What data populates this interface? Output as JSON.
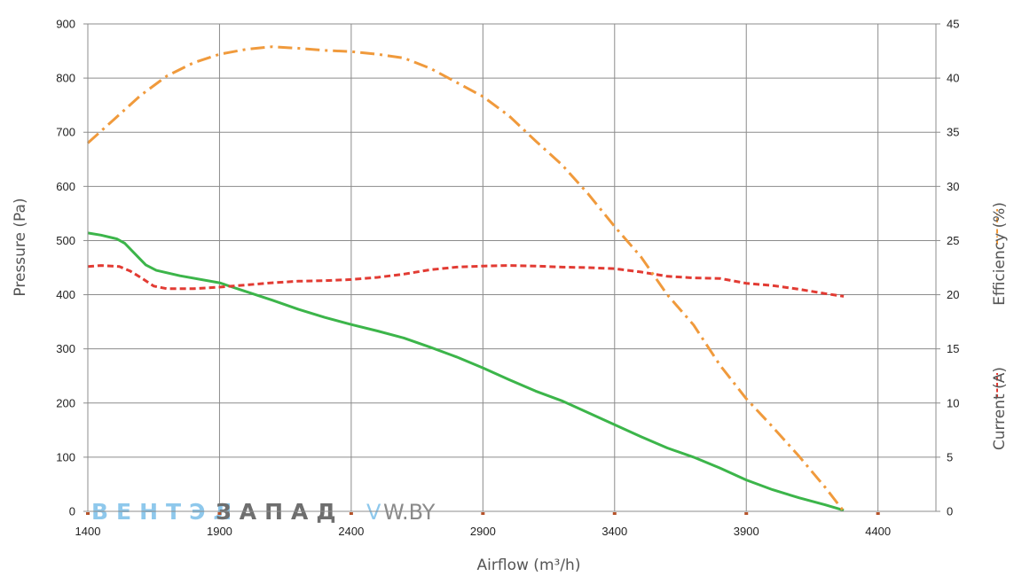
{
  "chart_data": {
    "type": "line",
    "xlabel": "Airflow (m³/h)",
    "ylabel": "Pressure (Pa)",
    "y2label_efficiency": "Efficiency (%)",
    "y2label_current": "Current (A)",
    "x_ticks": [
      "1400",
      "1900",
      "2400",
      "2900",
      "3400",
      "3900",
      "4400"
    ],
    "y_ticks": [
      "0",
      "100",
      "200",
      "300",
      "400",
      "500",
      "600",
      "700",
      "800",
      "900"
    ],
    "y2_ticks": [
      "0",
      "5",
      "10",
      "15",
      "20",
      "25",
      "30",
      "35",
      "40",
      "45"
    ],
    "xlim": [
      1400,
      4620
    ],
    "ylim": [
      0,
      900
    ],
    "y2lim": [
      0,
      45
    ],
    "grid": true,
    "series": [
      {
        "key": "pressure",
        "axis": "left",
        "color": "#3cb54a",
        "style": "solid",
        "points": [
          [
            1400,
            514
          ],
          [
            1450,
            510
          ],
          [
            1510,
            503
          ],
          [
            1540,
            495
          ],
          [
            1580,
            475
          ],
          [
            1620,
            455
          ],
          [
            1660,
            445
          ],
          [
            1750,
            435
          ],
          [
            1900,
            422
          ],
          [
            2000,
            406
          ],
          [
            2100,
            390
          ],
          [
            2200,
            373
          ],
          [
            2300,
            358
          ],
          [
            2400,
            345
          ],
          [
            2500,
            333
          ],
          [
            2600,
            320
          ],
          [
            2700,
            303
          ],
          [
            2800,
            285
          ],
          [
            2900,
            265
          ],
          [
            3000,
            243
          ],
          [
            3100,
            222
          ],
          [
            3200,
            204
          ],
          [
            3300,
            182
          ],
          [
            3400,
            160
          ],
          [
            3500,
            138
          ],
          [
            3600,
            117
          ],
          [
            3700,
            100
          ],
          [
            3800,
            80
          ],
          [
            3900,
            58
          ],
          [
            4000,
            40
          ],
          [
            4100,
            25
          ],
          [
            4200,
            12
          ],
          [
            4270,
            2
          ]
        ]
      },
      {
        "key": "current",
        "axis": "right",
        "color": "#e23b33",
        "style": "dashed",
        "points": [
          [
            1400,
            22.6
          ],
          [
            1450,
            22.7
          ],
          [
            1520,
            22.6
          ],
          [
            1560,
            22.2
          ],
          [
            1600,
            21.6
          ],
          [
            1650,
            20.8
          ],
          [
            1700,
            20.55
          ],
          [
            1800,
            20.55
          ],
          [
            1900,
            20.7
          ],
          [
            2000,
            20.9
          ],
          [
            2100,
            21.1
          ],
          [
            2200,
            21.25
          ],
          [
            2300,
            21.3
          ],
          [
            2400,
            21.4
          ],
          [
            2500,
            21.6
          ],
          [
            2600,
            21.9
          ],
          [
            2700,
            22.3
          ],
          [
            2800,
            22.55
          ],
          [
            2900,
            22.65
          ],
          [
            3000,
            22.7
          ],
          [
            3100,
            22.65
          ],
          [
            3200,
            22.55
          ],
          [
            3300,
            22.5
          ],
          [
            3400,
            22.4
          ],
          [
            3500,
            22.1
          ],
          [
            3600,
            21.7
          ],
          [
            3700,
            21.55
          ],
          [
            3800,
            21.5
          ],
          [
            3900,
            21.05
          ],
          [
            4000,
            20.85
          ],
          [
            4100,
            20.5
          ],
          [
            4200,
            20.1
          ],
          [
            4270,
            19.85
          ]
        ]
      },
      {
        "key": "efficiency",
        "axis": "right",
        "color": "#f09a3c",
        "style": "dashdot",
        "points": [
          [
            1400,
            34
          ],
          [
            1500,
            36.2
          ],
          [
            1600,
            38.4
          ],
          [
            1700,
            40.2
          ],
          [
            1800,
            41.4
          ],
          [
            1900,
            42.2
          ],
          [
            2000,
            42.65
          ],
          [
            2100,
            42.9
          ],
          [
            2200,
            42.75
          ],
          [
            2300,
            42.55
          ],
          [
            2400,
            42.45
          ],
          [
            2500,
            42.2
          ],
          [
            2600,
            41.85
          ],
          [
            2700,
            40.9
          ],
          [
            2800,
            39.6
          ],
          [
            2900,
            38.3
          ],
          [
            3000,
            36.5
          ],
          [
            3100,
            34.2
          ],
          [
            3200,
            32.0
          ],
          [
            3300,
            29.3
          ],
          [
            3400,
            26.3
          ],
          [
            3500,
            23.5
          ],
          [
            3600,
            20.0
          ],
          [
            3700,
            17.2
          ],
          [
            3800,
            13.5
          ],
          [
            3900,
            10.4
          ],
          [
            4000,
            7.8
          ],
          [
            4100,
            5.1
          ],
          [
            4200,
            2.2
          ],
          [
            4270,
            0
          ]
        ]
      }
    ]
  },
  "watermark": {
    "brand_part1": "ВЕНТЭЛ",
    "brand_part2": "ЗАПАД",
    "site_part1": "V",
    "site_part2": "W.BY"
  }
}
